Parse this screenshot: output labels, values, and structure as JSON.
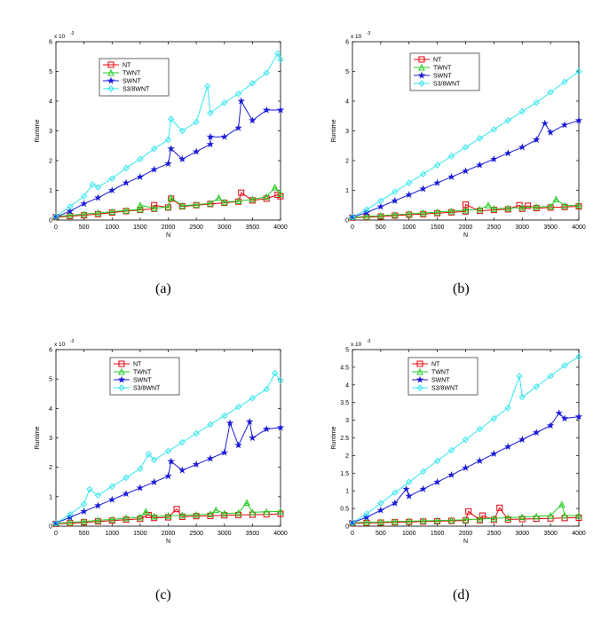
{
  "colors": {
    "NT": "#e8000b",
    "TWNT": "#22cc22",
    "SWNT": "#1a1ad8",
    "S3_8WNT": "#33e6ee",
    "axis": "#000000"
  },
  "chart_data": [
    {
      "type": "line",
      "panel_label": "(a)",
      "xlabel": "N",
      "ylabel": "Runtime",
      "exponent_label": "x 10",
      "exponent_power": "-3",
      "xlim": [
        0,
        4000
      ],
      "ylim": [
        0,
        6
      ],
      "xticks": [
        0,
        500,
        1000,
        1500,
        2000,
        2500,
        3000,
        3500,
        4000
      ],
      "yticks": [
        0,
        1,
        2,
        3,
        4,
        5,
        6
      ],
      "legend_position": "top-left-inside",
      "x": [
        0,
        250,
        500,
        750,
        1000,
        1250,
        1500,
        1750,
        2000,
        2250,
        2500,
        2750,
        3000,
        3250,
        3500,
        3750,
        4000
      ],
      "series": [
        {
          "name": "NT",
          "marker": "square",
          "values": [
            0.1,
            0.13,
            0.16,
            0.2,
            0.25,
            0.3,
            0.34,
            0.38,
            0.42,
            0.46,
            0.5,
            0.54,
            0.58,
            0.62,
            0.66,
            0.72,
            0.8
          ],
          "spikes": [
            {
              "x": 1750,
              "y": 0.5
            },
            {
              "x": 2050,
              "y": 0.72
            },
            {
              "x": 3300,
              "y": 0.92
            },
            {
              "x": 3950,
              "y": 0.85
            }
          ]
        },
        {
          "name": "TWNT",
          "marker": "triangle",
          "values": [
            0.12,
            0.16,
            0.2,
            0.24,
            0.28,
            0.32,
            0.36,
            0.4,
            0.44,
            0.48,
            0.52,
            0.56,
            0.6,
            0.64,
            0.7,
            0.78,
            0.88
          ],
          "spikes": [
            {
              "x": 1500,
              "y": 0.5
            },
            {
              "x": 2050,
              "y": 0.75
            },
            {
              "x": 2900,
              "y": 0.75
            },
            {
              "x": 3900,
              "y": 1.1
            }
          ]
        },
        {
          "name": "SWNT",
          "marker": "star",
          "values": [
            0.1,
            0.3,
            0.55,
            0.75,
            1.0,
            1.25,
            1.45,
            1.7,
            1.9,
            2.05,
            2.3,
            2.55,
            2.8,
            3.1,
            3.35,
            3.7,
            3.7
          ],
          "spikes": [
            {
              "x": 2050,
              "y": 2.4
            },
            {
              "x": 2750,
              "y": 2.8
            },
            {
              "x": 3300,
              "y": 4.0
            }
          ]
        },
        {
          "name": "S3/8WNT",
          "marker": "diamond",
          "values": [
            0.12,
            0.45,
            0.8,
            1.1,
            1.4,
            1.75,
            2.05,
            2.4,
            2.7,
            3.0,
            3.3,
            3.6,
            3.95,
            4.25,
            4.6,
            4.95,
            5.4
          ],
          "spikes": [
            {
              "x": 650,
              "y": 1.2
            },
            {
              "x": 2050,
              "y": 3.4
            },
            {
              "x": 2700,
              "y": 4.5
            },
            {
              "x": 3950,
              "y": 5.6
            }
          ]
        }
      ]
    },
    {
      "type": "line",
      "panel_label": "(b)",
      "xlabel": "N",
      "ylabel": "Runtime",
      "exponent_label": "x 10",
      "exponent_power": "-3",
      "xlim": [
        0,
        4000
      ],
      "ylim": [
        0,
        6
      ],
      "xticks": [
        0,
        500,
        1000,
        1500,
        2000,
        2500,
        3000,
        3500,
        4000
      ],
      "yticks": [
        0,
        1,
        2,
        3,
        4,
        5,
        6
      ],
      "legend_position": "top-left-inside",
      "x": [
        0,
        250,
        500,
        750,
        1000,
        1250,
        1500,
        1750,
        2000,
        2250,
        2500,
        2750,
        3000,
        3250,
        3500,
        3750,
        4000
      ],
      "series": [
        {
          "name": "NT",
          "marker": "square",
          "values": [
            0.08,
            0.1,
            0.12,
            0.15,
            0.18,
            0.2,
            0.23,
            0.26,
            0.29,
            0.31,
            0.34,
            0.36,
            0.38,
            0.4,
            0.42,
            0.44,
            0.46
          ],
          "spikes": [
            {
              "x": 2000,
              "y": 0.52
            },
            {
              "x": 2950,
              "y": 0.5
            },
            {
              "x": 3100,
              "y": 0.48
            }
          ]
        },
        {
          "name": "TWNT",
          "marker": "triangle",
          "values": [
            0.1,
            0.12,
            0.15,
            0.18,
            0.21,
            0.24,
            0.27,
            0.3,
            0.33,
            0.36,
            0.38,
            0.4,
            0.42,
            0.44,
            0.46,
            0.48,
            0.5
          ],
          "spikes": [
            {
              "x": 2400,
              "y": 0.5
            },
            {
              "x": 3600,
              "y": 0.7
            }
          ]
        },
        {
          "name": "SWNT",
          "marker": "star",
          "values": [
            0.1,
            0.25,
            0.45,
            0.65,
            0.85,
            1.05,
            1.25,
            1.45,
            1.65,
            1.85,
            2.05,
            2.25,
            2.45,
            2.7,
            2.95,
            3.2,
            3.35
          ],
          "spikes": [
            {
              "x": 3400,
              "y": 3.25
            }
          ]
        },
        {
          "name": "S3/8WNT",
          "marker": "diamond",
          "values": [
            0.1,
            0.35,
            0.65,
            0.95,
            1.25,
            1.55,
            1.85,
            2.15,
            2.45,
            2.75,
            3.05,
            3.35,
            3.65,
            3.95,
            4.3,
            4.65,
            5.0
          ],
          "spikes": []
        }
      ]
    },
    {
      "type": "line",
      "panel_label": "(c)",
      "xlabel": "N",
      "ylabel": "Runtime",
      "exponent_label": "x 10",
      "exponent_power": "-3",
      "xlim": [
        0,
        4000
      ],
      "ylim": [
        0,
        6
      ],
      "xticks": [
        0,
        500,
        1000,
        1500,
        2000,
        2500,
        3000,
        3500,
        4000
      ],
      "yticks": [
        0,
        1,
        2,
        3,
        4,
        5,
        6
      ],
      "legend_position": "top-left-inside",
      "x": [
        0,
        250,
        500,
        750,
        1000,
        1250,
        1500,
        1750,
        2000,
        2250,
        2500,
        2750,
        3000,
        3250,
        3500,
        3750,
        4000
      ],
      "series": [
        {
          "name": "NT",
          "marker": "square",
          "values": [
            0.08,
            0.1,
            0.13,
            0.16,
            0.19,
            0.22,
            0.25,
            0.28,
            0.3,
            0.32,
            0.34,
            0.35,
            0.37,
            0.38,
            0.39,
            0.4,
            0.42
          ],
          "spikes": [
            {
              "x": 1650,
              "y": 0.38
            },
            {
              "x": 2150,
              "y": 0.58
            }
          ]
        },
        {
          "name": "TWNT",
          "marker": "triangle",
          "values": [
            0.1,
            0.13,
            0.16,
            0.2,
            0.23,
            0.27,
            0.3,
            0.33,
            0.35,
            0.37,
            0.39,
            0.41,
            0.43,
            0.45,
            0.47,
            0.49,
            0.5
          ],
          "spikes": [
            {
              "x": 1600,
              "y": 0.5
            },
            {
              "x": 2850,
              "y": 0.55
            },
            {
              "x": 3400,
              "y": 0.8
            }
          ]
        },
        {
          "name": "SWNT",
          "marker": "star",
          "values": [
            0.1,
            0.3,
            0.5,
            0.7,
            0.9,
            1.1,
            1.3,
            1.5,
            1.7,
            1.9,
            2.1,
            2.3,
            2.5,
            2.75,
            3.0,
            3.3,
            3.35
          ],
          "spikes": [
            {
              "x": 2050,
              "y": 2.2
            },
            {
              "x": 3100,
              "y": 3.5
            },
            {
              "x": 3450,
              "y": 3.55
            }
          ]
        },
        {
          "name": "S3/8WNT",
          "marker": "diamond",
          "values": [
            0.1,
            0.4,
            0.75,
            1.05,
            1.35,
            1.65,
            1.95,
            2.25,
            2.55,
            2.85,
            3.15,
            3.45,
            3.75,
            4.05,
            4.35,
            4.65,
            4.95
          ],
          "spikes": [
            {
              "x": 600,
              "y": 1.25
            },
            {
              "x": 1650,
              "y": 2.45
            },
            {
              "x": 3900,
              "y": 5.2
            }
          ]
        }
      ]
    },
    {
      "type": "line",
      "panel_label": "(d)",
      "xlabel": "N",
      "ylabel": "Runtime",
      "exponent_label": "x 10",
      "exponent_power": "-3",
      "xlim": [
        0,
        4000
      ],
      "ylim": [
        0,
        5
      ],
      "xticks": [
        0,
        500,
        1000,
        1500,
        2000,
        2500,
        3000,
        3500,
        4000
      ],
      "yticks": [
        0,
        0.5,
        1,
        1.5,
        2,
        2.5,
        3,
        3.5,
        4,
        4.5,
        5
      ],
      "legend_position": "top-left-inside",
      "x": [
        0,
        250,
        500,
        750,
        1000,
        1250,
        1500,
        1750,
        2000,
        2250,
        2500,
        2750,
        3000,
        3250,
        3500,
        3750,
        4000
      ],
      "series": [
        {
          "name": "NT",
          "marker": "square",
          "values": [
            0.08,
            0.09,
            0.1,
            0.11,
            0.12,
            0.13,
            0.14,
            0.15,
            0.16,
            0.17,
            0.18,
            0.19,
            0.2,
            0.21,
            0.22,
            0.23,
            0.24
          ],
          "spikes": [
            {
              "x": 2050,
              "y": 0.42
            },
            {
              "x": 2600,
              "y": 0.52
            },
            {
              "x": 2300,
              "y": 0.3
            }
          ]
        },
        {
          "name": "TWNT",
          "marker": "triangle",
          "values": [
            0.1,
            0.11,
            0.12,
            0.13,
            0.14,
            0.15,
            0.16,
            0.17,
            0.18,
            0.2,
            0.22,
            0.24,
            0.26,
            0.28,
            0.3,
            0.3,
            0.3
          ],
          "spikes": [
            {
              "x": 3700,
              "y": 0.62
            }
          ]
        },
        {
          "name": "SWNT",
          "marker": "star",
          "values": [
            0.1,
            0.25,
            0.45,
            0.65,
            0.85,
            1.05,
            1.25,
            1.45,
            1.65,
            1.85,
            2.05,
            2.25,
            2.45,
            2.65,
            2.85,
            3.05,
            3.1
          ],
          "spikes": [
            {
              "x": 950,
              "y": 1.05
            },
            {
              "x": 3650,
              "y": 3.2
            }
          ]
        },
        {
          "name": "S3/8WNT",
          "marker": "diamond",
          "values": [
            0.1,
            0.35,
            0.65,
            0.95,
            1.25,
            1.55,
            1.85,
            2.15,
            2.45,
            2.75,
            3.05,
            3.35,
            3.65,
            3.95,
            4.25,
            4.55,
            4.8
          ],
          "spikes": [
            {
              "x": 2950,
              "y": 4.25
            }
          ]
        }
      ]
    }
  ]
}
